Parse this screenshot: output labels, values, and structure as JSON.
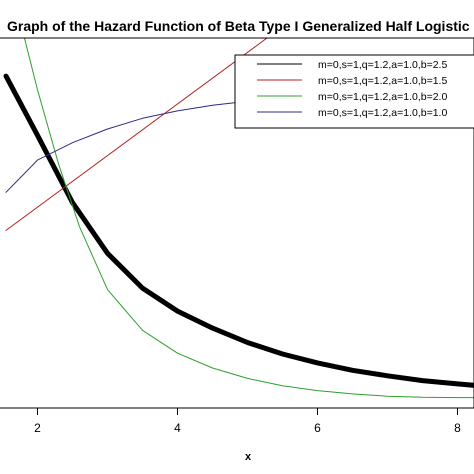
{
  "chart_data": {
    "type": "line",
    "title": "Graph of the Hazard Function of Beta Type I Generalized Half Logistic Distribution",
    "xlabel": "x",
    "ylabel": "",
    "xlim": [
      1.55,
      8.25
    ],
    "ylim": [
      0.0,
      1.0
    ],
    "x_ticks": [
      2,
      4,
      6,
      8
    ],
    "legend_position": "top-right",
    "grid": false,
    "series": [
      {
        "name": "m=0,s=1,q=1.2,a=1.0,b=2.5",
        "color": "#000000",
        "width": 5,
        "x": [
          1.55,
          2.0,
          2.5,
          3.0,
          3.5,
          4.0,
          4.5,
          5.0,
          5.5,
          6.0,
          6.5,
          7.0,
          7.5,
          8.0,
          8.25
        ],
        "y": [
          0.897,
          0.737,
          0.555,
          0.418,
          0.324,
          0.262,
          0.216,
          0.177,
          0.146,
          0.122,
          0.102,
          0.087,
          0.074,
          0.065,
          0.061
        ]
      },
      {
        "name": "m=0,s=1,q=1.2,a=1.0,b=1.5",
        "color": "#b22222",
        "width": 1,
        "x": [
          1.55,
          5.35
        ],
        "y": [
          0.48,
          1.01
        ]
      },
      {
        "name": "m=0,s=1,q=1.2,a=1.0,b=2.0",
        "color": "#2ca02c",
        "width": 1,
        "x": [
          1.8,
          2.0,
          2.3,
          2.6,
          3.0,
          3.5,
          4.0,
          4.5,
          5.0,
          5.5,
          6.0,
          6.5,
          7.0,
          7.5,
          8.0,
          8.25
        ],
        "y": [
          1.01,
          0.86,
          0.66,
          0.49,
          0.32,
          0.21,
          0.148,
          0.108,
          0.08,
          0.06,
          0.047,
          0.038,
          0.032,
          0.029,
          0.028,
          0.028
        ]
      },
      {
        "name": "m=0,s=1,q=1.2,a=1.0,b=1.0",
        "color": "#2b2b8c",
        "width": 1,
        "x": [
          1.55,
          2.0,
          2.5,
          3.0,
          3.5,
          4.0,
          4.5,
          5.0,
          5.5,
          6.0,
          6.5,
          7.0,
          7.5,
          8.0,
          8.25
        ],
        "y": [
          0.583,
          0.67,
          0.717,
          0.754,
          0.783,
          0.803,
          0.818,
          0.829,
          0.836,
          0.842,
          0.846,
          0.849,
          0.851,
          0.853,
          0.854
        ]
      }
    ]
  }
}
